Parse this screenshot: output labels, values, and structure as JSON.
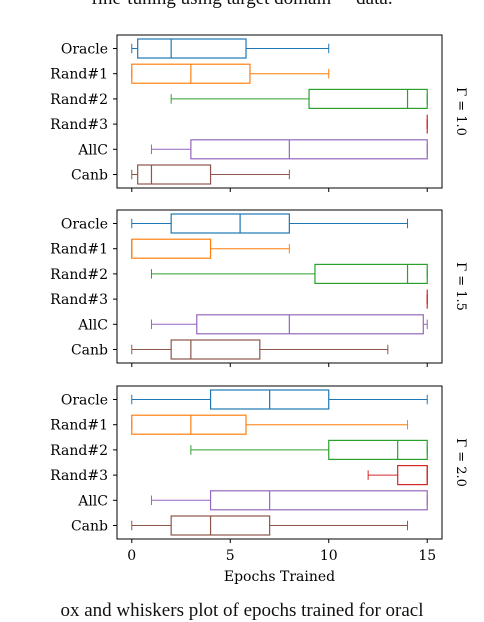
{
  "caption": {
    "top_fragment": "fine-tuning using target domain \"\" data.",
    "bottom_fragment": "ox and whiskers plot of epochs trained for oracl"
  },
  "colors": {
    "Oracle": "#1f77b4",
    "Rand#1": "#ff7f0e",
    "Rand#2": "#2ca02c",
    "Rand#3": "#d62728",
    "AllC": "#9467bd",
    "Canb": "#8c564b"
  },
  "chart_data": {
    "type": "box",
    "orientation": "horizontal",
    "xlabel": "Epochs Trained",
    "xlim": [
      -0.75,
      15.75
    ],
    "xticks": [
      0,
      5,
      10,
      15
    ],
    "categories": [
      "Oracle",
      "Rand#1",
      "Rand#2",
      "Rand#3",
      "AllC",
      "Canb"
    ],
    "panels": [
      {
        "label": "Γ = 1.0",
        "boxes": [
          {
            "name": "Oracle",
            "whislo": 0,
            "q1": 0.3,
            "med": 2,
            "q3": 5.8,
            "whishi": 10
          },
          {
            "name": "Rand#1",
            "whislo": 0,
            "q1": 0,
            "med": 3,
            "q3": 6,
            "whishi": 10
          },
          {
            "name": "Rand#2",
            "whislo": 2,
            "q1": 9,
            "med": 14,
            "q3": 15,
            "whishi": 15
          },
          {
            "name": "Rand#3",
            "whislo": 15,
            "q1": 15,
            "med": 15,
            "q3": 15,
            "whishi": 15
          },
          {
            "name": "AllC",
            "whislo": 1,
            "q1": 3,
            "med": 8,
            "q3": 15,
            "whishi": 15
          },
          {
            "name": "Canb",
            "whislo": 0,
            "q1": 0.3,
            "med": 1,
            "q3": 4,
            "whishi": 8
          }
        ]
      },
      {
        "label": "Γ = 1.5",
        "boxes": [
          {
            "name": "Oracle",
            "whislo": 0,
            "q1": 2,
            "med": 5.5,
            "q3": 8,
            "whishi": 14
          },
          {
            "name": "Rand#1",
            "whislo": 0,
            "q1": 0,
            "med": 0,
            "q3": 4,
            "whishi": 8
          },
          {
            "name": "Rand#2",
            "whislo": 1,
            "q1": 9.3,
            "med": 14,
            "q3": 15,
            "whishi": 15
          },
          {
            "name": "Rand#3",
            "whislo": 15,
            "q1": 15,
            "med": 15,
            "q3": 15,
            "whishi": 15
          },
          {
            "name": "AllC",
            "whislo": 1,
            "q1": 3.3,
            "med": 8,
            "q3": 14.8,
            "whishi": 15
          },
          {
            "name": "Canb",
            "whislo": 0,
            "q1": 2,
            "med": 3,
            "q3": 6.5,
            "whishi": 13
          }
        ]
      },
      {
        "label": "Γ = 2.0",
        "boxes": [
          {
            "name": "Oracle",
            "whislo": 0,
            "q1": 4,
            "med": 7,
            "q3": 10,
            "whishi": 15
          },
          {
            "name": "Rand#1",
            "whislo": 0,
            "q1": 0,
            "med": 3,
            "q3": 5.8,
            "whishi": 14
          },
          {
            "name": "Rand#2",
            "whislo": 3,
            "q1": 10,
            "med": 13.5,
            "q3": 15,
            "whishi": 15
          },
          {
            "name": "Rand#3",
            "whislo": 12,
            "q1": 13.5,
            "med": 15,
            "q3": 15,
            "whishi": 15
          },
          {
            "name": "AllC",
            "whislo": 1,
            "q1": 4,
            "med": 7,
            "q3": 15,
            "whishi": 15
          },
          {
            "name": "Canb",
            "whislo": 0,
            "q1": 2,
            "med": 4,
            "q3": 7,
            "whishi": 14
          }
        ]
      }
    ]
  }
}
